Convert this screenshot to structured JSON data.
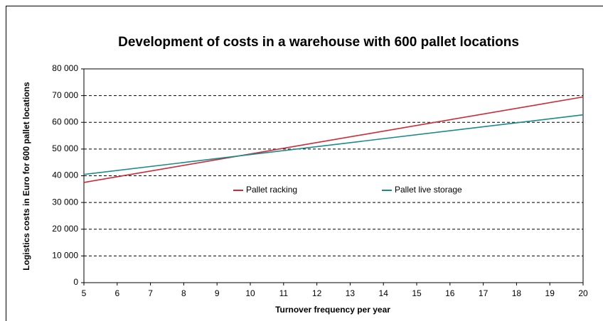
{
  "chart_data": {
    "type": "line",
    "title": "Development of costs in a warehouse with 600 pallet locations",
    "x_label": "Turnover frequency per year",
    "y_label": "Logistics costs in Euro for 600 pallet locations",
    "x": [
      5,
      20
    ],
    "series": [
      {
        "name": "Pallet racking",
        "color": "#cc2a36",
        "values": [
          37500,
          69500
        ]
      },
      {
        "name": "Pallet live storage",
        "color": "#1a8a8a",
        "values": [
          40500,
          62800
        ]
      }
    ],
    "xlim": [
      5,
      20
    ],
    "xticks": [
      5,
      6,
      7,
      8,
      9,
      10,
      11,
      12,
      13,
      14,
      15,
      16,
      17,
      18,
      19,
      20
    ],
    "ylim": [
      0,
      80000
    ],
    "yticks": [
      0,
      {
        "value": 10000,
        "label": "10 000"
      },
      {
        "value": 20000,
        "label": "20 000"
      },
      {
        "value": 30000,
        "label": "30 000"
      },
      {
        "value": 40000,
        "label": "40 000"
      },
      {
        "value": 50000,
        "label": "50 000"
      },
      {
        "value": 60000,
        "label": "60 000"
      },
      {
        "value": 70000,
        "label": "70 000"
      },
      {
        "value": 80000,
        "label": "80 000"
      }
    ],
    "grid": true
  }
}
